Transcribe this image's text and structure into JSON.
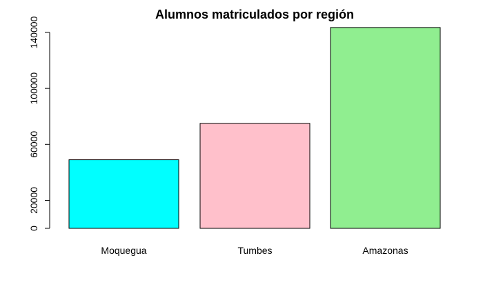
{
  "chart_data": {
    "type": "bar",
    "title": "Alumnos matriculados por región",
    "categories": [
      "Moquegua",
      "Tumbes",
      "Amazonas"
    ],
    "values": [
      49000,
      75000,
      143500
    ],
    "colors": [
      "#00FFFF",
      "#FFC0CB",
      "#90EE90"
    ],
    "ylim": [
      0,
      140000
    ],
    "yticks": [
      0,
      20000,
      60000,
      100000,
      140000
    ],
    "ytick_labels": [
      "0",
      "20000",
      "60000",
      "100000",
      "140000"
    ],
    "xlabel": "",
    "ylabel": "",
    "grid": false,
    "legend": "none"
  }
}
